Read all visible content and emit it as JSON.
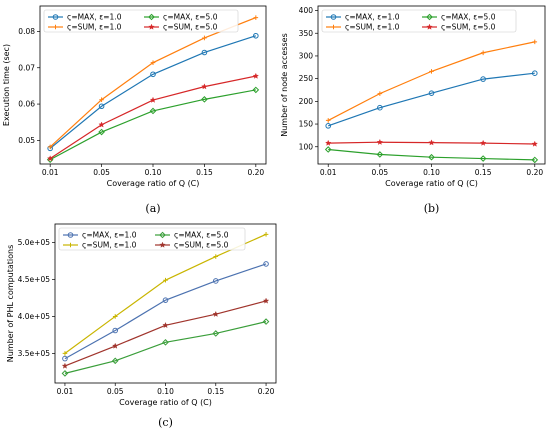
{
  "chart_data": [
    {
      "type": "line",
      "caption": "(a)",
      "xlabel": "Coverage ratio of Q (C)",
      "ylabel": "Execution time (sec)",
      "categories": [
        "0.01",
        "0.05",
        "0.10",
        "0.15",
        "0.20"
      ],
      "ylim": [
        0.0435,
        0.087
      ],
      "yticks": [
        "0.05",
        "0.06",
        "0.07",
        "0.08"
      ],
      "ytick_values": [
        0.05,
        0.06,
        0.07,
        0.08
      ],
      "legend_position": "top-left",
      "legend_cols": 2,
      "series": [
        {
          "name": "ς=MAX, ε=1.0",
          "color": "#1f77b4",
          "marker": "o",
          "values": [
            0.0478,
            0.0594,
            0.0682,
            0.0742,
            0.0788
          ]
        },
        {
          "name": "ς=SUM, ε=1.0",
          "color": "#ff7f0e",
          "marker": "+",
          "values": [
            0.0482,
            0.0612,
            0.0714,
            0.0782,
            0.0838
          ]
        },
        {
          "name": "ς=MAX, ε=5.0",
          "color": "#2ca02c",
          "marker": "D",
          "values": [
            0.0447,
            0.0523,
            0.0581,
            0.0613,
            0.0639
          ]
        },
        {
          "name": "ς=SUM, ε=5.0",
          "color": "#d62728",
          "marker": "*",
          "values": [
            0.045,
            0.0543,
            0.0611,
            0.0648,
            0.0677
          ]
        }
      ]
    },
    {
      "type": "line",
      "caption": "(b)",
      "xlabel": "Coverage ratio of Q (C)",
      "ylabel": "Number of node accesses",
      "categories": [
        "0.01",
        "0.05",
        "0.10",
        "0.15",
        "0.20"
      ],
      "ylim": [
        62,
        410
      ],
      "yticks": [
        "100",
        "150",
        "200",
        "250",
        "300",
        "350",
        "400"
      ],
      "ytick_values": [
        100,
        150,
        200,
        250,
        300,
        350,
        400
      ],
      "legend_position": "top-left",
      "legend_cols": 2,
      "series": [
        {
          "name": "ς=MAX, ε=1.0",
          "color": "#1f77b4",
          "marker": "o",
          "values": [
            146,
            186,
            218,
            249,
            262
          ]
        },
        {
          "name": "ς=SUM, ε=1.0",
          "color": "#ff7f0e",
          "marker": "+",
          "values": [
            158,
            217,
            266,
            307,
            331
          ]
        },
        {
          "name": "ς=MAX, ε=5.0",
          "color": "#2ca02c",
          "marker": "D",
          "values": [
            94,
            83,
            77,
            74,
            71
          ]
        },
        {
          "name": "ς=SUM, ε=5.0",
          "color": "#d62728",
          "marker": "*",
          "values": [
            108,
            110,
            109,
            108,
            106
          ]
        }
      ]
    },
    {
      "type": "line",
      "caption": "(c)",
      "xlabel": "Coverage ratio of Q (C)",
      "ylabel": "Number of PHL computations",
      "categories": [
        "0.01",
        "0.05",
        "0.10",
        "0.15",
        "0.20"
      ],
      "ylim": [
        310000,
        525000
      ],
      "yticks": [
        "3.5e+05",
        "4.0e+05",
        "4.5e+05",
        "5.0e+05"
      ],
      "ytick_values": [
        350000,
        400000,
        450000,
        500000
      ],
      "legend_position": "top-left",
      "legend_cols": 2,
      "series": [
        {
          "name": "ς=MAX, ε=1.0",
          "color": "#4c72b0",
          "marker": "o",
          "values": [
            343000,
            381000,
            422000,
            448000,
            471000
          ]
        },
        {
          "name": "ς=SUM, ε=1.0",
          "color": "#c9b500",
          "marker": "+",
          "values": [
            350000,
            400000,
            449000,
            481000,
            511000
          ]
        },
        {
          "name": "ς=MAX, ε=5.0",
          "color": "#3a9e3a",
          "marker": "D",
          "values": [
            323000,
            340000,
            365000,
            377000,
            393000
          ]
        },
        {
          "name": "ς=SUM, ε=5.0",
          "color": "#a0342c",
          "marker": "*",
          "values": [
            333000,
            360000,
            388000,
            403000,
            421000
          ]
        }
      ]
    }
  ]
}
